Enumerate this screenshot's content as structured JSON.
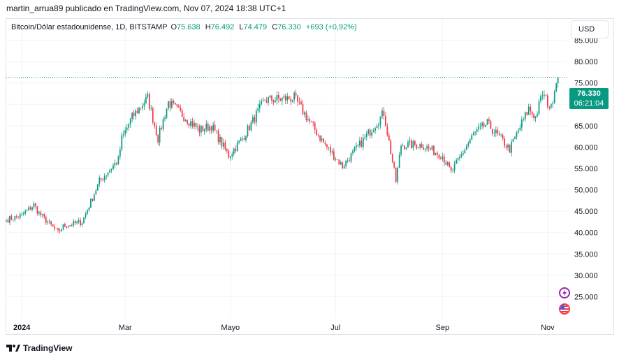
{
  "header": {
    "published_by": "martin_arrua89 publicado en TradingView.com, Nov 07, 2024 18:38 UTC+1"
  },
  "legend": {
    "symbol": "Bitcoin/Dólar estadounidense, 1D, BITSTAMP",
    "open_label": "O",
    "open": "75.638",
    "high_label": "H",
    "high": "76.492",
    "low_label": "L",
    "low": "74.479",
    "close_label": "C",
    "close": "76.330",
    "change": "+693 (+0,92%)"
  },
  "currency_button": "USD",
  "last_price": {
    "price": "76.330",
    "countdown": "06:21:04"
  },
  "footer": {
    "brand": "TradingView"
  },
  "colors": {
    "up": "#089981",
    "down": "#F23645",
    "grid": "#F0F3FA",
    "axis_text": "#131722"
  },
  "icons": [
    "tradingview-logo-icon",
    "lightning-event-icon",
    "us-flag-event-icon"
  ],
  "chart_data": {
    "type": "candlestick",
    "title": "Bitcoin/Dólar estadounidense, 1D, BITSTAMP",
    "x_ticks": [
      {
        "label": "2024",
        "date": "2024-01-01"
      },
      {
        "label": "Mar",
        "date": "2024-03-01"
      },
      {
        "label": "Mayo",
        "date": "2024-05-01"
      },
      {
        "label": "Jul",
        "date": "2024-07-01"
      },
      {
        "label": "Sep",
        "date": "2024-09-01"
      },
      {
        "label": "Nov",
        "date": "2024-11-01"
      }
    ],
    "y_ticks": [
      "25.000",
      "30.000",
      "35.000",
      "40.000",
      "45.000",
      "50.000",
      "55.000",
      "60.000",
      "65.000",
      "70.000",
      "75.000",
      "80.000",
      "85.000"
    ],
    "y_range": [
      20000,
      90000
    ],
    "x_range": [
      "2023-12-23",
      "2024-11-12"
    ],
    "grid": true,
    "series": {
      "dates": [
        "2023-12-23",
        "2024-01-01",
        "2024-01-08",
        "2024-01-11",
        "2024-01-22",
        "2024-01-25",
        "2024-02-05",
        "2024-02-15",
        "2024-02-26",
        "2024-02-28",
        "2024-03-05",
        "2024-03-14",
        "2024-03-20",
        "2024-03-26",
        "2024-04-13",
        "2024-04-20",
        "2024-04-30",
        "2024-05-08",
        "2024-05-21",
        "2024-06-07",
        "2024-06-24",
        "2024-07-05",
        "2024-07-14",
        "2024-07-29",
        "2024-08-05",
        "2024-08-08",
        "2024-08-20",
        "2024-09-01",
        "2024-09-06",
        "2024-09-19",
        "2024-09-27",
        "2024-10-10",
        "2024-10-21",
        "2024-10-25",
        "2024-10-29",
        "2024-11-03",
        "2024-11-05",
        "2024-11-07"
      ],
      "close": [
        43000,
        44000,
        46500,
        44500,
        40000,
        41500,
        42500,
        52000,
        57000,
        62000,
        67000,
        71500,
        62000,
        70500,
        64000,
        65000,
        58000,
        62000,
        71000,
        71500,
        61000,
        55500,
        60000,
        68000,
        52000,
        60500,
        60500,
        58000,
        54000,
        63000,
        65500,
        59500,
        69000,
        67000,
        72500,
        69000,
        74000,
        76330
      ]
    }
  }
}
